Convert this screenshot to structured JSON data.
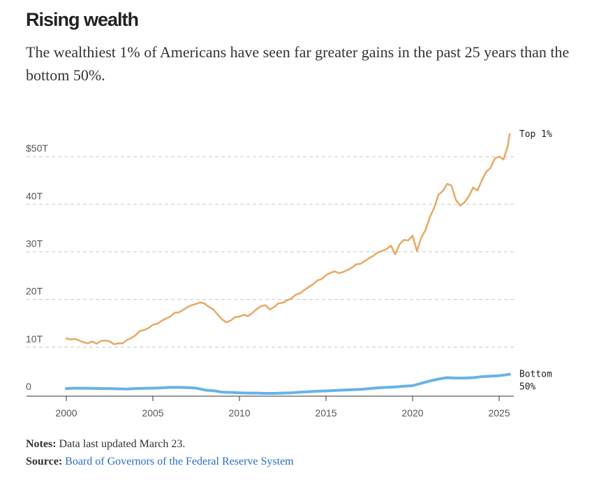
{
  "header": {
    "title": "Rising wealth",
    "subtitle": "The wealthiest 1% of Americans have seen far greater gains in the past 25 years than the bottom 50%."
  },
  "footer": {
    "notes_label": "Notes:",
    "notes_text": "Data last updated March 23.",
    "source_label": "Source:",
    "source_link": "Board of Governors of the Federal Reserve System"
  },
  "colors": {
    "top1": "#e8a864",
    "bottom50": "#67b3e8",
    "grid": "#c8c8c8",
    "axis": "#333333",
    "link": "#2b6cc4"
  },
  "chart_data": {
    "type": "line",
    "title": "Rising wealth",
    "xlabel": "",
    "ylabel": "",
    "xlim": [
      1999,
      2025.9
    ],
    "ylim": [
      0,
      55
    ],
    "grid": true,
    "x_ticks": [
      {
        "value": 2000,
        "label": "2000"
      },
      {
        "value": 2005,
        "label": "2005"
      },
      {
        "value": 2010,
        "label": "2010"
      },
      {
        "value": 2015,
        "label": "2015"
      },
      {
        "value": 2020,
        "label": "2020"
      },
      {
        "value": 2025,
        "label": "2025"
      }
    ],
    "y_ticks": [
      {
        "value": 0,
        "label": "0"
      },
      {
        "value": 10,
        "label": "10T"
      },
      {
        "value": 20,
        "label": "20T"
      },
      {
        "value": 30,
        "label": "30T"
      },
      {
        "value": 40,
        "label": "40T"
      },
      {
        "value": 50,
        "label": "$50T"
      }
    ],
    "series": [
      {
        "name": "Top 1%",
        "label_lines": [
          "Top 1%"
        ],
        "color_key": "top1",
        "points": [
          [
            2000.0,
            11.8
          ],
          [
            2000.25,
            11.6
          ],
          [
            2000.5,
            11.7
          ],
          [
            2000.75,
            11.4
          ],
          [
            2001.0,
            11.0
          ],
          [
            2001.25,
            10.8
          ],
          [
            2001.5,
            11.2
          ],
          [
            2001.75,
            10.7
          ],
          [
            2002.0,
            11.3
          ],
          [
            2002.25,
            11.4
          ],
          [
            2002.5,
            11.2
          ],
          [
            2002.75,
            10.6
          ],
          [
            2003.0,
            10.8
          ],
          [
            2003.25,
            10.8
          ],
          [
            2003.5,
            11.5
          ],
          [
            2003.75,
            11.9
          ],
          [
            2004.0,
            12.5
          ],
          [
            2004.25,
            13.4
          ],
          [
            2004.5,
            13.6
          ],
          [
            2004.75,
            14.0
          ],
          [
            2005.0,
            14.7
          ],
          [
            2005.25,
            14.9
          ],
          [
            2005.5,
            15.5
          ],
          [
            2005.75,
            16.0
          ],
          [
            2006.0,
            16.4
          ],
          [
            2006.25,
            17.2
          ],
          [
            2006.5,
            17.3
          ],
          [
            2006.75,
            17.8
          ],
          [
            2007.0,
            18.4
          ],
          [
            2007.25,
            18.8
          ],
          [
            2007.5,
            19.1
          ],
          [
            2007.75,
            19.4
          ],
          [
            2008.0,
            19.1
          ],
          [
            2008.25,
            18.4
          ],
          [
            2008.5,
            17.9
          ],
          [
            2008.75,
            16.8
          ],
          [
            2009.0,
            15.8
          ],
          [
            2009.25,
            15.2
          ],
          [
            2009.5,
            15.6
          ],
          [
            2009.75,
            16.3
          ],
          [
            2010.0,
            16.4
          ],
          [
            2010.25,
            16.8
          ],
          [
            2010.5,
            16.5
          ],
          [
            2010.75,
            17.2
          ],
          [
            2011.0,
            18.0
          ],
          [
            2011.25,
            18.6
          ],
          [
            2011.5,
            18.8
          ],
          [
            2011.75,
            17.9
          ],
          [
            2012.0,
            18.4
          ],
          [
            2012.25,
            19.2
          ],
          [
            2012.5,
            19.3
          ],
          [
            2012.75,
            19.8
          ],
          [
            2013.0,
            20.2
          ],
          [
            2013.25,
            21.0
          ],
          [
            2013.5,
            21.3
          ],
          [
            2013.75,
            22.0
          ],
          [
            2014.0,
            22.6
          ],
          [
            2014.25,
            23.2
          ],
          [
            2014.5,
            24.0
          ],
          [
            2014.75,
            24.3
          ],
          [
            2015.0,
            25.1
          ],
          [
            2015.25,
            25.6
          ],
          [
            2015.5,
            25.9
          ],
          [
            2015.75,
            25.5
          ],
          [
            2016.0,
            25.8
          ],
          [
            2016.25,
            26.2
          ],
          [
            2016.5,
            26.7
          ],
          [
            2016.75,
            27.4
          ],
          [
            2017.0,
            27.5
          ],
          [
            2017.25,
            28.1
          ],
          [
            2017.5,
            28.7
          ],
          [
            2017.75,
            29.2
          ],
          [
            2018.0,
            29.9
          ],
          [
            2018.25,
            30.2
          ],
          [
            2018.5,
            30.6
          ],
          [
            2018.75,
            31.3
          ],
          [
            2019.0,
            29.5
          ],
          [
            2019.25,
            31.6
          ],
          [
            2019.5,
            32.5
          ],
          [
            2019.75,
            32.4
          ],
          [
            2020.0,
            33.4
          ],
          [
            2020.25,
            30.2
          ],
          [
            2020.5,
            33.0
          ],
          [
            2020.75,
            34.6
          ],
          [
            2021.0,
            37.3
          ],
          [
            2021.25,
            39.3
          ],
          [
            2021.5,
            42.0
          ],
          [
            2021.75,
            42.8
          ],
          [
            2022.0,
            44.3
          ],
          [
            2022.25,
            43.9
          ],
          [
            2022.5,
            40.9
          ],
          [
            2022.75,
            39.7
          ],
          [
            2023.0,
            40.4
          ],
          [
            2023.25,
            41.7
          ],
          [
            2023.5,
            43.5
          ],
          [
            2023.75,
            42.9
          ],
          [
            2024.0,
            45.0
          ],
          [
            2024.25,
            46.8
          ],
          [
            2024.5,
            47.6
          ],
          [
            2024.75,
            49.6
          ],
          [
            2025.0,
            50.0
          ],
          [
            2025.25,
            49.4
          ],
          [
            2025.5,
            52.2
          ],
          [
            2025.6,
            54.7
          ]
        ]
      },
      {
        "name": "Bottom 50%",
        "label_lines": [
          "Bottom",
          "50%"
        ],
        "color_key": "bottom50",
        "points": [
          [
            2000.0,
            1.3
          ],
          [
            2000.5,
            1.4
          ],
          [
            2001.0,
            1.35
          ],
          [
            2001.5,
            1.35
          ],
          [
            2002.0,
            1.3
          ],
          [
            2002.5,
            1.3
          ],
          [
            2003.0,
            1.25
          ],
          [
            2003.5,
            1.2
          ],
          [
            2004.0,
            1.3
          ],
          [
            2004.5,
            1.35
          ],
          [
            2005.0,
            1.4
          ],
          [
            2005.5,
            1.45
          ],
          [
            2006.0,
            1.55
          ],
          [
            2006.5,
            1.55
          ],
          [
            2007.0,
            1.5
          ],
          [
            2007.5,
            1.4
          ],
          [
            2008.0,
            1.0
          ],
          [
            2008.5,
            0.85
          ],
          [
            2009.0,
            0.55
          ],
          [
            2009.5,
            0.5
          ],
          [
            2010.0,
            0.4
          ],
          [
            2010.5,
            0.35
          ],
          [
            2011.0,
            0.35
          ],
          [
            2011.5,
            0.3
          ],
          [
            2012.0,
            0.3
          ],
          [
            2012.5,
            0.35
          ],
          [
            2013.0,
            0.4
          ],
          [
            2013.5,
            0.55
          ],
          [
            2014.0,
            0.65
          ],
          [
            2014.5,
            0.75
          ],
          [
            2015.0,
            0.8
          ],
          [
            2015.5,
            0.9
          ],
          [
            2016.0,
            1.0
          ],
          [
            2016.5,
            1.05
          ],
          [
            2017.0,
            1.15
          ],
          [
            2017.5,
            1.3
          ],
          [
            2018.0,
            1.45
          ],
          [
            2018.5,
            1.55
          ],
          [
            2019.0,
            1.65
          ],
          [
            2019.5,
            1.8
          ],
          [
            2020.0,
            1.9
          ],
          [
            2020.5,
            2.4
          ],
          [
            2021.0,
            2.9
          ],
          [
            2021.5,
            3.3
          ],
          [
            2022.0,
            3.6
          ],
          [
            2022.5,
            3.5
          ],
          [
            2023.0,
            3.5
          ],
          [
            2023.5,
            3.6
          ],
          [
            2024.0,
            3.8
          ],
          [
            2024.5,
            3.9
          ],
          [
            2025.0,
            4.0
          ],
          [
            2025.6,
            4.3
          ]
        ]
      }
    ]
  }
}
